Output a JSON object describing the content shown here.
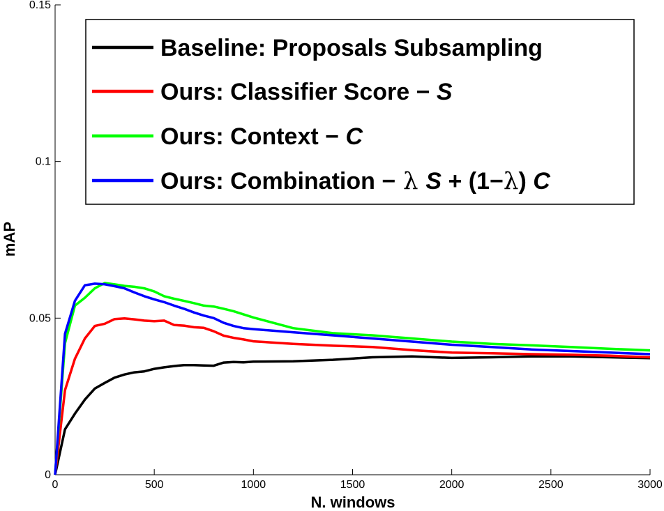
{
  "chart_data": {
    "type": "line",
    "title": "",
    "xlabel": "N. windows",
    "ylabel": "mAP",
    "xlim": [
      0,
      3000
    ],
    "ylim": [
      0,
      0.15
    ],
    "xticks": [
      0,
      500,
      1000,
      1500,
      2000,
      2500,
      3000
    ],
    "xtick_labels": [
      "0",
      "500",
      "1000",
      "1500",
      "2000",
      "2500",
      "3000"
    ],
    "yticks": [
      0,
      0.05,
      0.1,
      0.15
    ],
    "ytick_labels": [
      "0",
      "0.05",
      "0.1",
      "0.15"
    ],
    "grid": false,
    "legend_position": "top-right",
    "legend": [
      {
        "parts": [
          {
            "text": "Baseline: Proposals Subsampling",
            "style": "text"
          }
        ]
      },
      {
        "parts": [
          {
            "text": "Ours: Classifier Score − ",
            "style": "text"
          },
          {
            "text": "S",
            "style": "sym"
          }
        ]
      },
      {
        "parts": [
          {
            "text": "Ours: Context − ",
            "style": "text"
          },
          {
            "text": "C",
            "style": "sym"
          }
        ]
      },
      {
        "parts": [
          {
            "text": "Ours: Combination −",
            "style": "text"
          },
          {
            "text": " λ ",
            "style": "lambda"
          },
          {
            "text": "S",
            "style": "sym"
          },
          {
            "text": " + (1−",
            "style": "text"
          },
          {
            "text": "λ",
            "style": "lambda"
          },
          {
            "text": ") ",
            "style": "text"
          },
          {
            "text": "C",
            "style": "sym"
          }
        ]
      }
    ],
    "series": [
      {
        "name": "Baseline: Proposals Subsampling",
        "color": "#000000",
        "x": [
          0,
          50,
          100,
          150,
          200,
          250,
          300,
          350,
          400,
          450,
          500,
          550,
          600,
          650,
          700,
          750,
          800,
          850,
          900,
          950,
          1000,
          1200,
          1400,
          1600,
          1800,
          2000,
          2200,
          2400,
          2600,
          2800,
          3000
        ],
        "y": [
          0,
          0.0145,
          0.0195,
          0.024,
          0.0275,
          0.0293,
          0.031,
          0.032,
          0.0327,
          0.033,
          0.0338,
          0.0343,
          0.0347,
          0.035,
          0.035,
          0.0349,
          0.0348,
          0.0358,
          0.036,
          0.0359,
          0.0361,
          0.0362,
          0.0367,
          0.0375,
          0.0378,
          0.0373,
          0.0375,
          0.0378,
          0.0378,
          0.0375,
          0.0372
        ]
      },
      {
        "name": "Ours: Classifier Score − S",
        "color": "#ff0000",
        "x": [
          0,
          50,
          100,
          150,
          200,
          250,
          300,
          350,
          400,
          450,
          500,
          550,
          600,
          650,
          700,
          750,
          800,
          850,
          900,
          950,
          1000,
          1200,
          1400,
          1600,
          1800,
          2000,
          2200,
          2400,
          2600,
          2800,
          3000
        ],
        "y": [
          0,
          0.027,
          0.037,
          0.0435,
          0.0475,
          0.0482,
          0.0497,
          0.0499,
          0.0496,
          0.0492,
          0.049,
          0.0492,
          0.0478,
          0.0476,
          0.0471,
          0.0469,
          0.0458,
          0.0444,
          0.0437,
          0.0432,
          0.0426,
          0.0418,
          0.0412,
          0.0408,
          0.0398,
          0.039,
          0.0388,
          0.0385,
          0.0383,
          0.038,
          0.0375
        ]
      },
      {
        "name": "Ours: Context − C",
        "color": "#00ff00",
        "x": [
          0,
          50,
          100,
          150,
          200,
          250,
          300,
          350,
          400,
          450,
          500,
          550,
          600,
          650,
          700,
          750,
          800,
          850,
          900,
          950,
          1000,
          1200,
          1400,
          1600,
          1800,
          2000,
          2200,
          2400,
          2600,
          2800,
          3000
        ],
        "y": [
          0,
          0.042,
          0.054,
          0.0565,
          0.0595,
          0.0612,
          0.0608,
          0.0603,
          0.06,
          0.0595,
          0.0585,
          0.057,
          0.0562,
          0.0555,
          0.0548,
          0.054,
          0.0537,
          0.053,
          0.0522,
          0.0512,
          0.0502,
          0.0468,
          0.0452,
          0.0445,
          0.0435,
          0.0425,
          0.0418,
          0.0413,
          0.0408,
          0.0402,
          0.0397
        ]
      },
      {
        "name": "Ours: Combination − λ S + (1−λ) C",
        "color": "#0000ff",
        "x": [
          0,
          50,
          100,
          150,
          200,
          250,
          300,
          350,
          400,
          450,
          500,
          550,
          600,
          650,
          700,
          750,
          800,
          850,
          900,
          950,
          1000,
          1200,
          1400,
          1600,
          1800,
          2000,
          2200,
          2400,
          2600,
          2800,
          3000
        ],
        "y": [
          0,
          0.045,
          0.0555,
          0.0605,
          0.061,
          0.0608,
          0.0602,
          0.0595,
          0.0582,
          0.057,
          0.056,
          0.0551,
          0.054,
          0.053,
          0.0518,
          0.0508,
          0.05,
          0.0485,
          0.0475,
          0.0468,
          0.0465,
          0.0455,
          0.0445,
          0.0435,
          0.0425,
          0.0415,
          0.0408,
          0.04,
          0.0395,
          0.039,
          0.0385
        ]
      }
    ]
  }
}
